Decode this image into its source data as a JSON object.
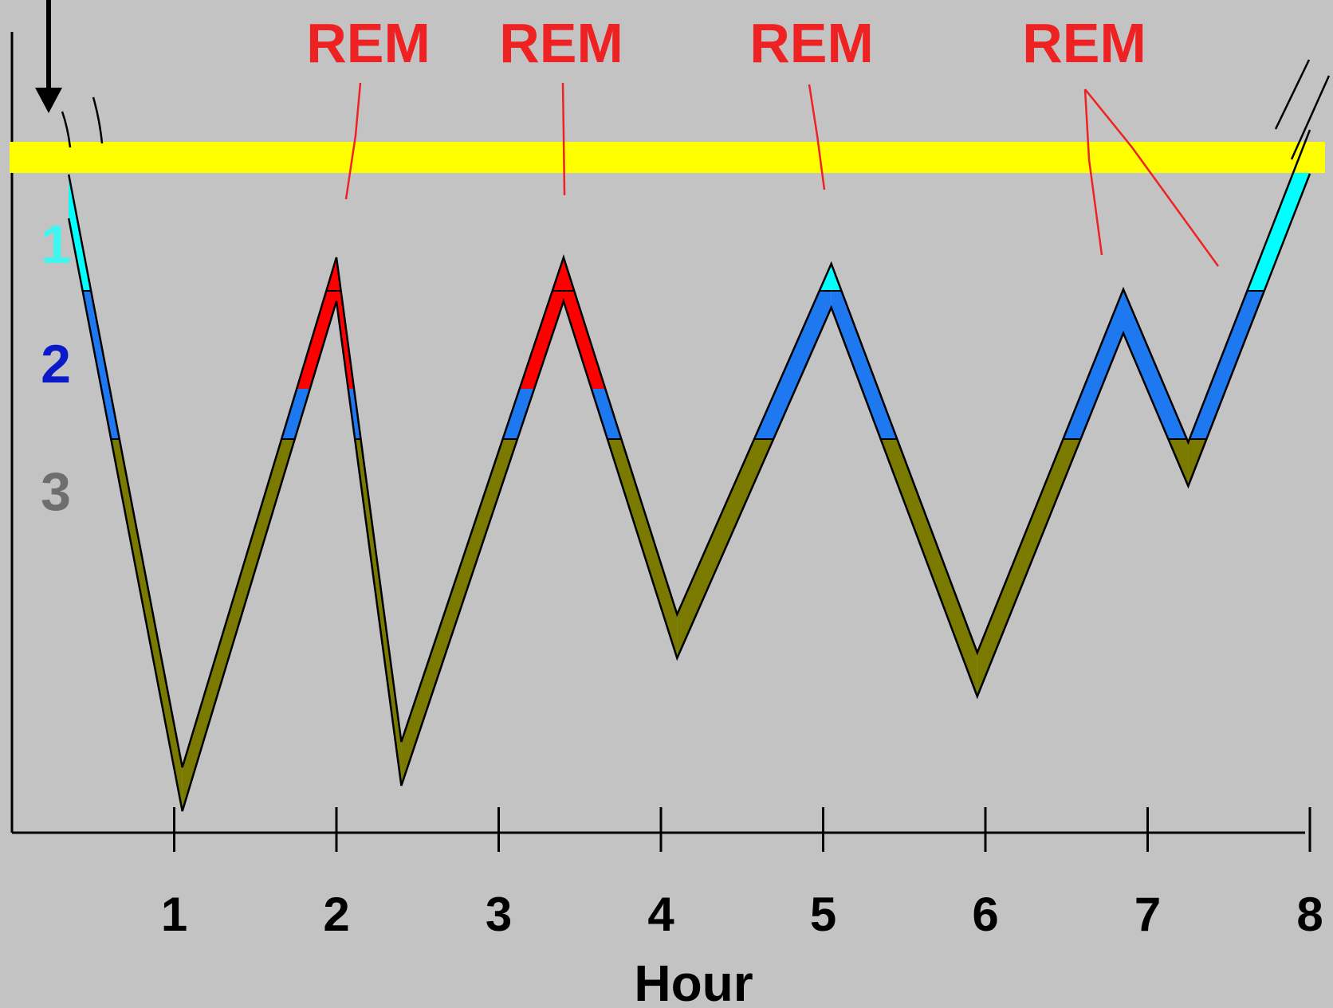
{
  "chart_data": {
    "type": "area",
    "xlabel": "Hour",
    "x_ticks": [
      "1",
      "2",
      "3",
      "4",
      "5",
      "6",
      "7",
      "8"
    ],
    "stage_labels": [
      {
        "label": "1",
        "color": "#3ff5f0"
      },
      {
        "label": "2",
        "color": "#0a1ac8"
      },
      {
        "label": "3",
        "color": "#6e6e6e"
      }
    ],
    "annotations": [
      "REM",
      "REM",
      "REM",
      "REM"
    ],
    "xlim": [
      0,
      8
    ],
    "depth_axis": "stage depth increases downward (awake at top)",
    "grid": false,
    "legend": "stage labels at left",
    "hypnogram": [
      {
        "hour": 0.35,
        "depth": 0.15
      },
      {
        "hour": 1.05,
        "depth": 4.8
      },
      {
        "hour": 2.0,
        "depth": 0.8
      },
      {
        "hour": 2.4,
        "depth": 4.6
      },
      {
        "hour": 3.4,
        "depth": 0.8
      },
      {
        "hour": 4.1,
        "depth": 3.6
      },
      {
        "hour": 5.05,
        "depth": 0.85
      },
      {
        "hour": 5.95,
        "depth": 3.9
      },
      {
        "hour": 6.85,
        "depth": 1.05
      },
      {
        "hour": 7.25,
        "depth": 2.25
      },
      {
        "hour": 8.0,
        "depth": -0.2
      }
    ],
    "colors": {
      "awake_band": "#ffff00",
      "stage1": "#00ffff",
      "stage2": "#1e78f0",
      "stage3": "#7a7a00",
      "rem": "#ff0000",
      "rem_text": "#ee2222",
      "axis": "#000000"
    }
  }
}
